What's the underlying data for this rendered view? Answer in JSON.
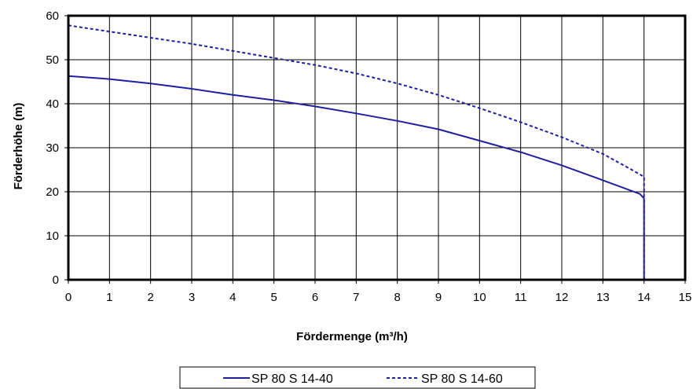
{
  "chart_data": {
    "type": "line",
    "title": "",
    "xlabel": "Fördermenge (m³/h)",
    "ylabel": "Förderhöhe (m)",
    "xlim": [
      0,
      15
    ],
    "ylim": [
      0,
      60
    ],
    "x_ticks": [
      0,
      1,
      2,
      3,
      4,
      5,
      6,
      7,
      8,
      9,
      10,
      11,
      12,
      13,
      14,
      15
    ],
    "y_ticks": [
      0,
      10,
      20,
      30,
      40,
      50,
      60
    ],
    "grid": true,
    "legend_position": "bottom",
    "series": [
      {
        "name": "SP 80 S 14-40",
        "line_style": "solid",
        "color": "#1f1fa0",
        "points": [
          [
            0,
            46.3
          ],
          [
            1,
            45.6
          ],
          [
            2,
            44.6
          ],
          [
            3,
            43.4
          ],
          [
            4,
            42.0
          ],
          [
            5,
            40.8
          ],
          [
            6,
            39.4
          ],
          [
            7,
            37.8
          ],
          [
            8,
            36.1
          ],
          [
            9,
            34.2
          ],
          [
            10,
            31.6
          ],
          [
            11,
            29.0
          ],
          [
            12,
            26.0
          ],
          [
            13,
            22.6
          ],
          [
            13.7,
            20.2
          ],
          [
            13.9,
            19.5
          ],
          [
            14.0,
            18.5
          ],
          [
            14.0,
            0
          ]
        ]
      },
      {
        "name": "SP 80 S 14-60",
        "line_style": "dashed",
        "color": "#1f1fa0",
        "points": [
          [
            0,
            57.8
          ],
          [
            1,
            56.4
          ],
          [
            2,
            55.0
          ],
          [
            3,
            53.6
          ],
          [
            4,
            52.0
          ],
          [
            5,
            50.4
          ],
          [
            6,
            48.8
          ],
          [
            7,
            46.9
          ],
          [
            8,
            44.6
          ],
          [
            9,
            42.0
          ],
          [
            10,
            39.0
          ],
          [
            11,
            35.8
          ],
          [
            12,
            32.4
          ],
          [
            13,
            28.6
          ],
          [
            13.7,
            25.0
          ],
          [
            14.0,
            23.4
          ],
          [
            14.0,
            0
          ]
        ]
      }
    ]
  }
}
